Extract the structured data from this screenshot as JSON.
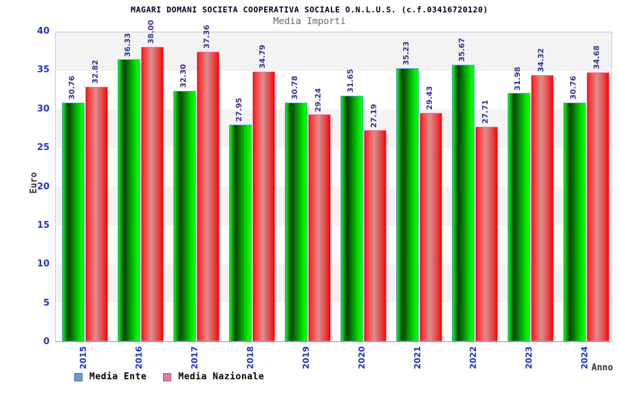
{
  "header": {
    "title": "MAGARI DOMANI SOCIETA COOPERATIVA SOCIALE O.N.L.U.S. (c.f.03416720120)",
    "subtitle": "Media Importi"
  },
  "chart_data": {
    "type": "bar",
    "title": "MAGARI DOMANI SOCIETA COOPERATIVA SOCIALE O.N.L.U.S. (c.f.03416720120)",
    "subtitle": "Media Importi",
    "categories": [
      "2015",
      "2016",
      "2017",
      "2018",
      "2019",
      "2020",
      "2021",
      "2022",
      "2023",
      "2024"
    ],
    "series": [
      {
        "name": "Media Ente",
        "values": [
          30.76,
          36.33,
          32.3,
          27.95,
          30.78,
          31.65,
          35.23,
          35.67,
          31.98,
          30.76
        ]
      },
      {
        "name": "Media Nazionale",
        "values": [
          32.82,
          38.0,
          37.36,
          34.79,
          29.24,
          27.19,
          29.43,
          27.71,
          34.32,
          34.68
        ]
      }
    ],
    "xlabel": "Anno",
    "ylabel": "Euro",
    "ylim": [
      0,
      40
    ],
    "yticks": [
      0,
      5,
      10,
      15,
      20,
      25,
      30,
      35,
      40
    ],
    "grid": "alternating-horizontal-bands",
    "legend_position": "bottom-left",
    "value_labels": "rotated-90-above-bars"
  },
  "legend": {
    "items": [
      {
        "label": "Media Ente",
        "swatch_fill": "#6b9bd8",
        "swatch_border": "#3f6fa8"
      },
      {
        "label": "Media Nazionale",
        "swatch_fill": "#e878a0",
        "swatch_border": "#b04f78"
      }
    ]
  },
  "colors": {
    "bar_ente_main": "#00cc00",
    "bar_ente_border": "#63a8e6",
    "bar_nazionale_main": "#ff0000",
    "bar_nazionale_border": "#ec82a8",
    "tick_label": "#2233cc",
    "value_label": "#333399",
    "axis_title": "#333333",
    "band_gray": "#f3f3f3",
    "title_color": "#000022",
    "subtitle_color": "#666666"
  }
}
